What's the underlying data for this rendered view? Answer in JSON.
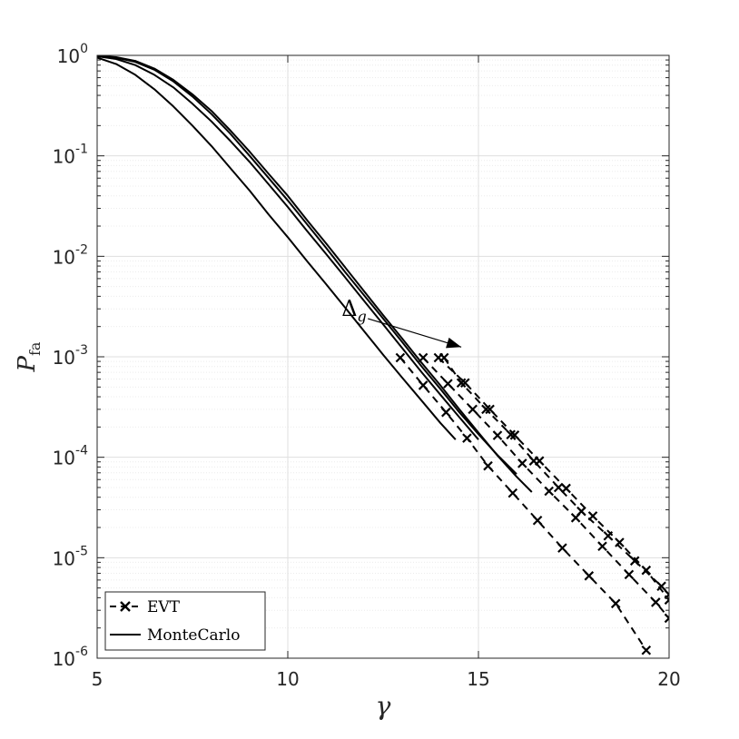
{
  "chart_data": {
    "type": "line",
    "title": "",
    "xlabel": "γ",
    "ylabel": {
      "base": "P",
      "sub": "fa"
    },
    "xlim": [
      5,
      20
    ],
    "ylim": [
      1e-06,
      1
    ],
    "yscale": "log",
    "grid": true,
    "minor_grid_y": true,
    "legend_placement": "bottom-left",
    "x_ticks": [
      "5",
      "10",
      "15",
      "20"
    ],
    "y_ticks": [
      {
        "base": "10",
        "exp": "0"
      },
      {
        "base": "10",
        "exp": "-1"
      },
      {
        "base": "10",
        "exp": "-2"
      },
      {
        "base": "10",
        "exp": "-3"
      },
      {
        "base": "10",
        "exp": "-4"
      },
      {
        "base": "10",
        "exp": "-5"
      },
      {
        "base": "10",
        "exp": "-6"
      }
    ],
    "legend": [
      {
        "label": "EVT",
        "style": "dashed-x"
      },
      {
        "label": "MonteCarlo",
        "style": "solid"
      }
    ],
    "annotation": {
      "label": "Δ",
      "sub": "g",
      "from": [
        12.1,
        0.0024
      ],
      "to": [
        14.55,
        0.00125
      ]
    },
    "colors": {
      "line": "#000000",
      "grid": "#dfdfdf",
      "axis": "#262626"
    },
    "series": [
      {
        "montecarlo": [
          [
            5,
            0.95
          ],
          [
            5.5,
            0.82
          ],
          [
            6,
            0.64
          ],
          [
            6.5,
            0.46
          ],
          [
            7,
            0.31
          ],
          [
            7.5,
            0.2
          ],
          [
            8,
            0.125
          ],
          [
            8.5,
            0.075
          ],
          [
            9,
            0.045
          ],
          [
            9.5,
            0.026
          ],
          [
            10,
            0.0155
          ],
          [
            10.5,
            0.009
          ],
          [
            11,
            0.0053
          ],
          [
            11.5,
            0.0031
          ],
          [
            12,
            0.0018
          ],
          [
            12.5,
            0.00105
          ],
          [
            13,
            0.00062
          ],
          [
            13.5,
            0.00037
          ],
          [
            14,
            0.00022
          ],
          [
            14.4,
            0.00015
          ]
        ],
        "evt": [
          [
            12.95,
            0.00098
          ],
          [
            13.55,
            0.00052
          ],
          [
            14.15,
            0.00028
          ],
          [
            14.7,
            0.000155
          ],
          [
            15.25,
            8.2e-05
          ],
          [
            15.9,
            4.4e-05
          ],
          [
            16.55,
            2.35e-05
          ],
          [
            17.2,
            1.25e-05
          ],
          [
            17.9,
            6.6e-06
          ],
          [
            18.6,
            3.5e-06
          ],
          [
            19.4,
            1.2e-06
          ]
        ]
      },
      {
        "montecarlo": [
          [
            5,
            0.98
          ],
          [
            5.5,
            0.92
          ],
          [
            6,
            0.8
          ],
          [
            6.5,
            0.64
          ],
          [
            7,
            0.48
          ],
          [
            7.5,
            0.33
          ],
          [
            8,
            0.22
          ],
          [
            8.5,
            0.14
          ],
          [
            9,
            0.087
          ],
          [
            9.5,
            0.052
          ],
          [
            10,
            0.031
          ],
          [
            10.5,
            0.018
          ],
          [
            11,
            0.0106
          ],
          [
            11.5,
            0.0062
          ],
          [
            12,
            0.0036
          ],
          [
            12.5,
            0.0021
          ],
          [
            13,
            0.00122
          ],
          [
            13.5,
            0.00071
          ],
          [
            14,
            0.00042
          ],
          [
            14.5,
            0.00025
          ],
          [
            15,
            0.00015
          ]
        ],
        "evt": [
          [
            13.55,
            0.00098
          ],
          [
            14.2,
            0.00054
          ],
          [
            14.85,
            0.0003
          ],
          [
            15.5,
            0.000165
          ],
          [
            16.15,
            8.7e-05
          ],
          [
            16.85,
            4.6e-05
          ],
          [
            17.55,
            2.5e-05
          ],
          [
            18.25,
            1.3e-05
          ],
          [
            18.95,
            6.8e-06
          ],
          [
            19.65,
            3.6e-06
          ],
          [
            20,
            2.5e-06
          ]
        ]
      },
      {
        "montecarlo": [
          [
            5,
            0.99
          ],
          [
            5.5,
            0.95
          ],
          [
            6,
            0.86
          ],
          [
            6.5,
            0.72
          ],
          [
            7,
            0.55
          ],
          [
            7.5,
            0.39
          ],
          [
            8,
            0.26
          ],
          [
            8.5,
            0.165
          ],
          [
            9,
            0.1
          ],
          [
            9.5,
            0.06
          ],
          [
            10,
            0.036
          ],
          [
            10.5,
            0.021
          ],
          [
            11,
            0.0122
          ],
          [
            11.5,
            0.007
          ],
          [
            12,
            0.0041
          ],
          [
            12.5,
            0.0024
          ],
          [
            13,
            0.0014
          ],
          [
            13.5,
            0.00081
          ],
          [
            14,
            0.00048
          ],
          [
            14.5,
            0.00028
          ],
          [
            15,
            0.00017
          ],
          [
            15.5,
            0.000105
          ],
          [
            16,
            6.8e-05
          ]
        ],
        "evt": [
          [
            13.95,
            0.00098
          ],
          [
            14.65,
            0.00055
          ],
          [
            15.3,
            0.0003
          ],
          [
            15.95,
            0.000166
          ],
          [
            16.6,
            9.2e-05
          ],
          [
            17.3,
            4.9e-05
          ],
          [
            18,
            2.6e-05
          ],
          [
            18.7,
            1.42e-05
          ],
          [
            19.4,
            7.5e-06
          ],
          [
            20,
            3.8e-06
          ]
        ]
      },
      {
        "montecarlo": [
          [
            5,
            0.99
          ],
          [
            5.5,
            0.96
          ],
          [
            6,
            0.88
          ],
          [
            6.5,
            0.74
          ],
          [
            7,
            0.57
          ],
          [
            7.5,
            0.41
          ],
          [
            8,
            0.28
          ],
          [
            8.5,
            0.178
          ],
          [
            9,
            0.11
          ],
          [
            9.5,
            0.066
          ],
          [
            10,
            0.04
          ],
          [
            10.5,
            0.023
          ],
          [
            11,
            0.0135
          ],
          [
            11.5,
            0.0078
          ],
          [
            12,
            0.0045
          ],
          [
            12.5,
            0.0026
          ],
          [
            13,
            0.00152
          ],
          [
            13.5,
            0.00088
          ],
          [
            14,
            0.00052
          ],
          [
            14.5,
            0.0003
          ],
          [
            15,
            0.000176
          ],
          [
            15.5,
            0.000104
          ],
          [
            16,
            6.4e-05
          ],
          [
            16.4,
            4.5e-05
          ]
        ],
        "evt": [
          [
            14.1,
            0.00098
          ],
          [
            14.55,
            0.00055
          ],
          [
            15.2,
            0.0003
          ],
          [
            15.85,
            0.000168
          ],
          [
            16.45,
            9.2e-05
          ],
          [
            17.1,
            5e-05
          ],
          [
            17.7,
            2.9e-05
          ],
          [
            18.4,
            1.65e-05
          ],
          [
            19.1,
            9.3e-06
          ],
          [
            19.8,
            5.2e-06
          ],
          [
            20,
            4.3e-06
          ]
        ]
      }
    ]
  }
}
